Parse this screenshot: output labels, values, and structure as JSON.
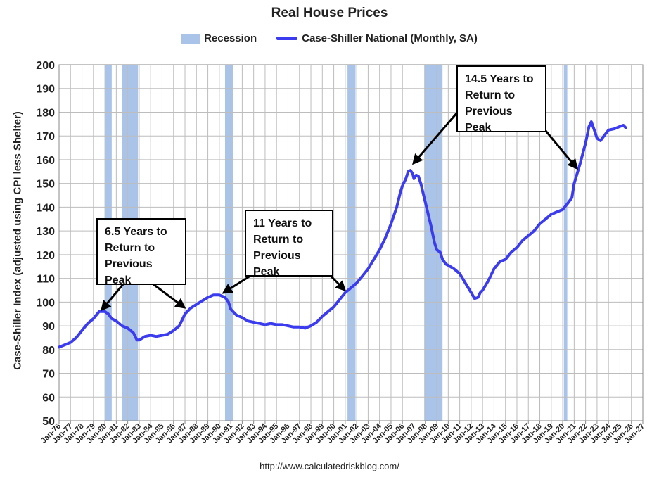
{
  "chart_data": {
    "type": "line",
    "title": "Real House Prices",
    "ylabel": "Case-Shiller Index (adjusted using CPI less Shelter)",
    "xlabel": "",
    "source": "http://www.calculatedriskblog.com/",
    "ylim": [
      50,
      200
    ],
    "yticks": [
      50,
      60,
      70,
      80,
      90,
      100,
      110,
      120,
      130,
      140,
      150,
      160,
      170,
      180,
      190,
      200
    ],
    "xlim": [
      1976.0,
      2027.0
    ],
    "xtick_labels": [
      "Jan-76",
      "Jan-77",
      "Jan-78",
      "Jan-79",
      "Jan-80",
      "Jan-81",
      "Jan-82",
      "Jan-83",
      "Jan-84",
      "Jan-85",
      "Jan-86",
      "Jan-87",
      "Jan-88",
      "Jan-89",
      "Jan-90",
      "Jan-91",
      "Jan-92",
      "Jan-93",
      "Jan-94",
      "Jan-95",
      "Jan-96",
      "Jan-97",
      "Jan-98",
      "Jan-99",
      "Jan-00",
      "Jan-01",
      "Jan-02",
      "Jan-03",
      "Jan-04",
      "Jan-05",
      "Jan-06",
      "Jan-07",
      "Jan-08",
      "Jan-09",
      "Jan-10",
      "Jan-11",
      "Jan-12",
      "Jan-13",
      "Jan-14",
      "Jan-15",
      "Jan-16",
      "Jan-17",
      "Jan-18",
      "Jan-19",
      "Jan-20",
      "Jan-21",
      "Jan-22",
      "Jan-23",
      "Jan-24",
      "Jan-25",
      "Jan-26",
      "Jan-27"
    ],
    "grid": true,
    "legend_position": "top",
    "legend": [
      "Recession",
      "Case-Shiller National (Monthly, SA)"
    ],
    "colors": {
      "series": "#3b3bf0",
      "recession": "#a9c4e8",
      "grid": "#bdbdbd"
    },
    "recessions": [
      {
        "start": 1980.0,
        "end": 1980.6
      },
      {
        "start": 1981.5,
        "end": 1982.9
      },
      {
        "start": 1990.5,
        "end": 1991.2
      },
      {
        "start": 2001.2,
        "end": 2001.9
      },
      {
        "start": 2007.9,
        "end": 2009.5
      },
      {
        "start": 2020.1,
        "end": 2020.4
      }
    ],
    "series": [
      {
        "name": "Case-Shiller National (Monthly, SA)",
        "points": [
          [
            1976.0,
            81
          ],
          [
            1976.5,
            82
          ],
          [
            1977.0,
            83
          ],
          [
            1977.5,
            85
          ],
          [
            1978.0,
            88
          ],
          [
            1978.5,
            91
          ],
          [
            1979.0,
            93
          ],
          [
            1979.5,
            96
          ],
          [
            1980.0,
            96
          ],
          [
            1980.3,
            95
          ],
          [
            1980.6,
            93
          ],
          [
            1981.0,
            92
          ],
          [
            1981.5,
            90
          ],
          [
            1982.0,
            89
          ],
          [
            1982.5,
            87
          ],
          [
            1982.8,
            84
          ],
          [
            1983.0,
            84
          ],
          [
            1983.5,
            85.5
          ],
          [
            1984.0,
            86
          ],
          [
            1984.5,
            85.5
          ],
          [
            1985.0,
            86
          ],
          [
            1985.5,
            86.5
          ],
          [
            1986.0,
            88
          ],
          [
            1986.5,
            90
          ],
          [
            1987.0,
            95
          ],
          [
            1987.5,
            97.5
          ],
          [
            1988.0,
            99
          ],
          [
            1988.5,
            100.5
          ],
          [
            1989.0,
            102
          ],
          [
            1989.5,
            103
          ],
          [
            1990.0,
            103
          ],
          [
            1990.5,
            102
          ],
          [
            1990.8,
            100
          ],
          [
            1991.0,
            97
          ],
          [
            1991.5,
            94.5
          ],
          [
            1992.0,
            93.5
          ],
          [
            1992.5,
            92
          ],
          [
            1993.0,
            91.5
          ],
          [
            1993.5,
            91
          ],
          [
            1994.0,
            90.5
          ],
          [
            1994.5,
            91
          ],
          [
            1995.0,
            90.5
          ],
          [
            1995.5,
            90.5
          ],
          [
            1996.0,
            90
          ],
          [
            1996.5,
            89.5
          ],
          [
            1997.0,
            89.5
          ],
          [
            1997.5,
            89
          ],
          [
            1998.0,
            90
          ],
          [
            1998.5,
            91.5
          ],
          [
            1999.0,
            94
          ],
          [
            1999.5,
            96
          ],
          [
            2000.0,
            98
          ],
          [
            2000.5,
            101
          ],
          [
            2001.0,
            104
          ],
          [
            2001.5,
            106
          ],
          [
            2002.0,
            108
          ],
          [
            2002.5,
            111
          ],
          [
            2003.0,
            114
          ],
          [
            2003.5,
            118
          ],
          [
            2004.0,
            122
          ],
          [
            2004.5,
            127
          ],
          [
            2005.0,
            133
          ],
          [
            2005.5,
            140
          ],
          [
            2005.8,
            146
          ],
          [
            2006.0,
            149
          ],
          [
            2006.3,
            152
          ],
          [
            2006.5,
            155
          ],
          [
            2006.7,
            155.5
          ],
          [
            2006.9,
            154
          ],
          [
            2007.0,
            152
          ],
          [
            2007.2,
            153.5
          ],
          [
            2007.4,
            153
          ],
          [
            2007.6,
            150
          ],
          [
            2008.0,
            142
          ],
          [
            2008.5,
            132
          ],
          [
            2008.8,
            125
          ],
          [
            2009.0,
            122
          ],
          [
            2009.3,
            121
          ],
          [
            2009.5,
            118
          ],
          [
            2009.8,
            116
          ],
          [
            2010.0,
            115.5
          ],
          [
            2010.5,
            114
          ],
          [
            2011.0,
            112
          ],
          [
            2011.5,
            108
          ],
          [
            2012.0,
            104
          ],
          [
            2012.3,
            101.5
          ],
          [
            2012.6,
            102
          ],
          [
            2012.8,
            104
          ],
          [
            2013.0,
            105
          ],
          [
            2013.5,
            109
          ],
          [
            2014.0,
            114
          ],
          [
            2014.5,
            117
          ],
          [
            2015.0,
            118
          ],
          [
            2015.5,
            121
          ],
          [
            2016.0,
            123
          ],
          [
            2016.5,
            126
          ],
          [
            2017.0,
            128
          ],
          [
            2017.5,
            130
          ],
          [
            2018.0,
            133
          ],
          [
            2018.5,
            135
          ],
          [
            2019.0,
            137
          ],
          [
            2019.5,
            138
          ],
          [
            2020.0,
            139
          ],
          [
            2020.5,
            142
          ],
          [
            2020.8,
            144
          ],
          [
            2021.0,
            150
          ],
          [
            2021.5,
            158
          ],
          [
            2022.0,
            167
          ],
          [
            2022.3,
            174
          ],
          [
            2022.5,
            176
          ],
          [
            2022.8,
            172
          ],
          [
            2023.0,
            169
          ],
          [
            2023.3,
            168
          ],
          [
            2023.6,
            170
          ],
          [
            2024.0,
            172.5
          ],
          [
            2024.5,
            173
          ],
          [
            2025.0,
            174
          ],
          [
            2025.3,
            174.5
          ],
          [
            2025.5,
            173.5
          ]
        ]
      }
    ],
    "annotations": [
      {
        "lines": [
          "6.5 Years to",
          "Return to",
          "Previous Peak"
        ]
      },
      {
        "lines": [
          "11 Years to",
          "Return to",
          "Previous Peak"
        ]
      },
      {
        "lines": [
          "14.5 Years to",
          "Return to",
          "Previous Peak"
        ]
      }
    ]
  }
}
